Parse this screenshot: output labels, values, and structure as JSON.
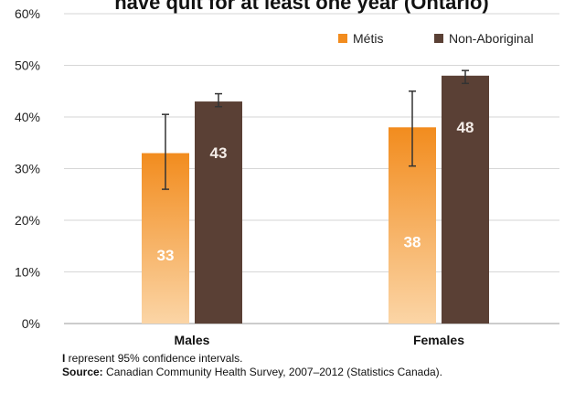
{
  "chart_data": {
    "type": "bar",
    "title": "have quit for at least one year (Ontario)",
    "categories": [
      "Males",
      "Females"
    ],
    "series": [
      {
        "name": "Métis",
        "color": "#F28C1E",
        "values": [
          33,
          38
        ],
        "data_labels": [
          "33",
          "38"
        ],
        "ci_low": [
          26,
          30.5
        ],
        "ci_high": [
          40.5,
          45
        ]
      },
      {
        "name": "Non-Aboriginal",
        "color": "#5A4035",
        "values": [
          43,
          48
        ],
        "data_labels": [
          "43",
          "48"
        ],
        "ci_low": [
          42,
          46.5
        ],
        "ci_high": [
          44.5,
          49
        ]
      }
    ],
    "ylim": [
      0,
      60
    ],
    "yticks": [
      "0%",
      "10%",
      "20%",
      "30%",
      "40%",
      "50%",
      "60%"
    ],
    "grid": true,
    "legend_position": "top-right"
  },
  "footnotes": {
    "ci_marker": "I",
    "ci_note": " represent 95% confidence intervals.",
    "source_label": "Source:",
    "source_text": " Canadian Community Health Survey, 2007–2012 (Statistics Canada)."
  }
}
